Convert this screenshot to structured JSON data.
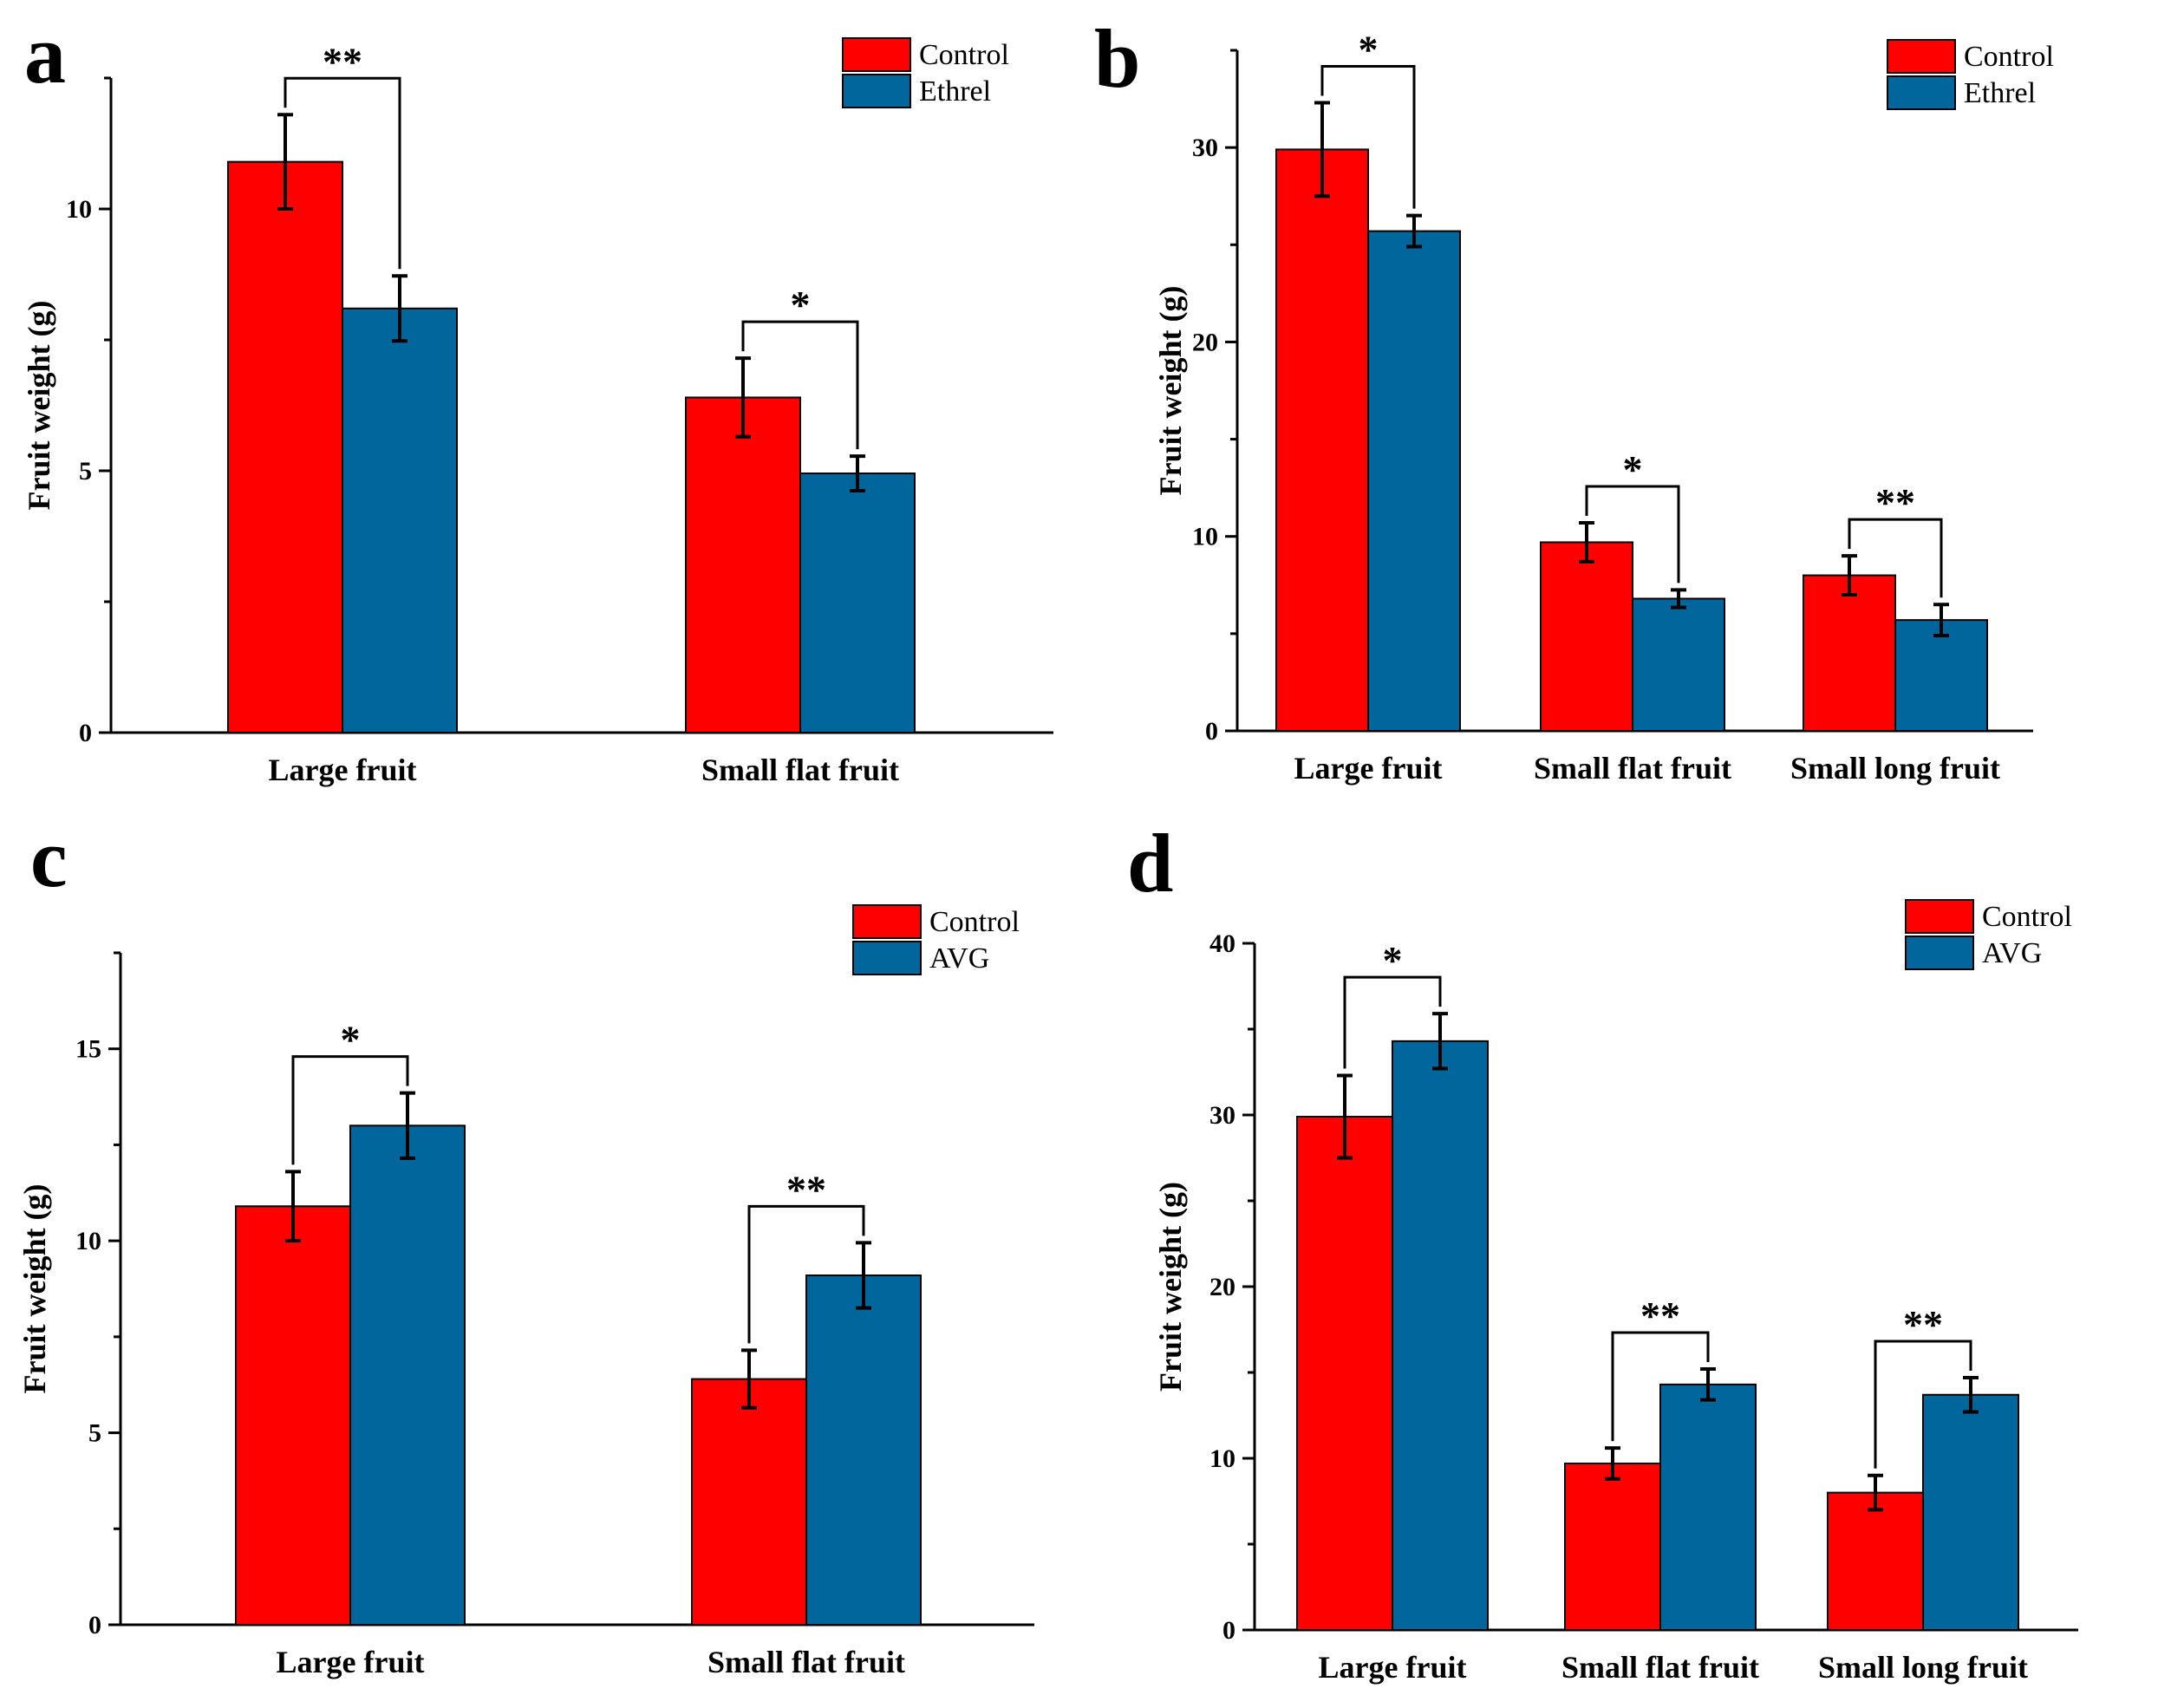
{
  "colors": {
    "control": "#ff0000",
    "treatment": "#00669c"
  },
  "chart_data": [
    {
      "panel_label": "a",
      "type": "bar",
      "ylabel": "Fruit weight (g)",
      "ylim": [
        0,
        12.5
      ],
      "yticks": [
        0,
        5,
        10
      ],
      "categories": [
        "Large fruit",
        "Small flat fruit"
      ],
      "series": [
        {
          "name": "Control",
          "values": [
            10.9,
            6.4
          ],
          "errors": [
            0.9,
            0.75
          ]
        },
        {
          "name": "Ethrel",
          "values": [
            8.1,
            4.95
          ],
          "errors": [
            0.62,
            0.33
          ]
        }
      ],
      "significance": [
        "**",
        "*"
      ],
      "legend": "top-right",
      "grid": false
    },
    {
      "panel_label": "b",
      "type": "bar",
      "ylabel": "Fruit weight (g)",
      "ylim": [
        0,
        35
      ],
      "yticks": [
        0,
        10,
        20,
        30
      ],
      "categories": [
        "Large fruit",
        "Small flat fruit",
        "Small long fruit"
      ],
      "series": [
        {
          "name": "Control",
          "values": [
            29.9,
            9.7,
            8.0
          ],
          "errors": [
            2.4,
            1.0,
            1.0
          ]
        },
        {
          "name": "Ethrel",
          "values": [
            25.7,
            6.8,
            5.7
          ],
          "errors": [
            0.8,
            0.45,
            0.8
          ]
        }
      ],
      "significance": [
        "*",
        "*",
        "**"
      ],
      "legend": "top-right",
      "grid": false
    },
    {
      "panel_label": "c",
      "type": "bar",
      "ylabel": "Fruit weight (g)",
      "ylim": [
        0,
        17.5
      ],
      "yticks": [
        0,
        5,
        10,
        15
      ],
      "categories": [
        "Large fruit",
        "Small flat fruit"
      ],
      "series": [
        {
          "name": "Control",
          "values": [
            10.9,
            6.4
          ],
          "errors": [
            0.9,
            0.75
          ]
        },
        {
          "name": "AVG",
          "values": [
            13.0,
            9.1
          ],
          "errors": [
            0.85,
            0.85
          ]
        }
      ],
      "significance": [
        "*",
        "**"
      ],
      "legend": "top-right",
      "grid": false
    },
    {
      "panel_label": "d",
      "type": "bar",
      "ylabel": "Fruit weight (g)",
      "ylim": [
        0,
        40
      ],
      "yticks": [
        0,
        10,
        20,
        30,
        40
      ],
      "categories": [
        "Large fruit",
        "Small flat fruit",
        "Small long fruit"
      ],
      "series": [
        {
          "name": "Control",
          "values": [
            29.9,
            9.7,
            8.0
          ],
          "errors": [
            2.4,
            0.9,
            1.0
          ]
        },
        {
          "name": "AVG",
          "values": [
            34.3,
            14.3,
            13.7
          ],
          "errors": [
            1.6,
            0.9,
            1.0
          ]
        }
      ],
      "significance": [
        "*",
        "**",
        "**"
      ],
      "legend": "top-right",
      "grid": false
    }
  ]
}
